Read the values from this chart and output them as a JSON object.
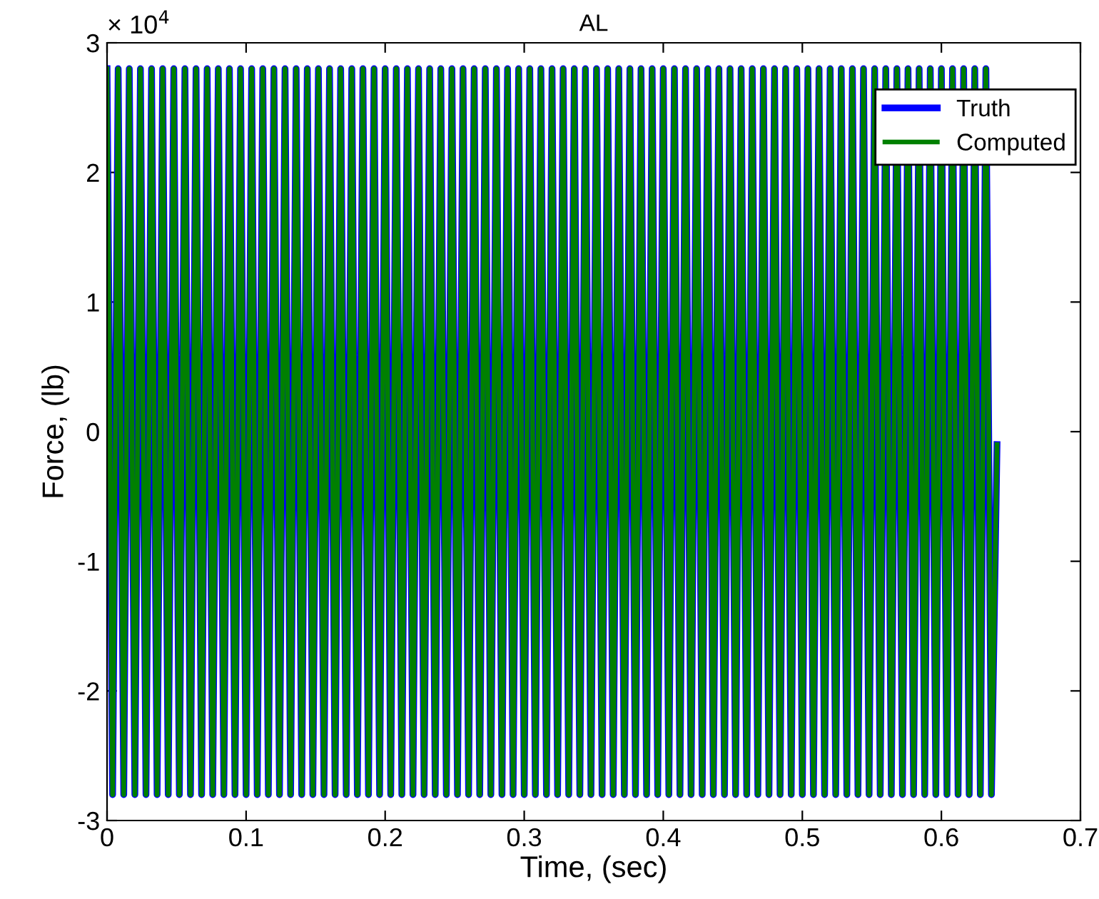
{
  "chart_data": {
    "type": "line",
    "title": "AL",
    "xlabel": "Time, (sec)",
    "ylabel": "Force, (lb)",
    "annotations": [
      "× 10$^{4}$"
    ],
    "x": [
      0,
      0.004,
      0.008,
      0.012,
      0.016,
      0.02,
      0.024,
      0.028,
      0.032,
      0.036,
      0.04,
      0.044,
      0.048,
      0.052,
      0.056,
      0.06,
      0.064,
      0.068,
      0.072,
      0.076,
      0.08,
      0.084,
      0.088,
      0.092,
      0.096,
      0.1,
      0.104,
      0.108,
      0.112,
      0.116,
      0.12,
      0.124,
      0.128,
      0.132,
      0.136,
      0.14,
      0.144,
      0.148,
      0.152,
      0.156,
      0.16,
      0.164,
      0.168,
      0.172,
      0.176,
      0.18,
      0.184,
      0.188,
      0.192,
      0.196,
      0.2,
      0.204,
      0.208,
      0.212,
      0.216,
      0.22,
      0.224,
      0.228,
      0.232,
      0.236,
      0.24,
      0.244,
      0.248,
      0.252,
      0.256,
      0.26,
      0.264,
      0.268,
      0.272,
      0.276,
      0.28,
      0.284,
      0.288,
      0.292,
      0.296,
      0.3,
      0.304,
      0.308,
      0.312,
      0.316,
      0.32,
      0.324,
      0.328,
      0.332,
      0.336,
      0.34,
      0.344,
      0.348,
      0.352,
      0.356,
      0.36,
      0.364,
      0.368,
      0.372,
      0.376,
      0.38,
      0.384,
      0.388,
      0.392,
      0.396,
      0.4,
      0.404,
      0.408,
      0.412,
      0.416,
      0.42,
      0.424,
      0.428,
      0.432,
      0.436,
      0.44,
      0.444,
      0.448,
      0.452,
      0.456,
      0.46,
      0.464,
      0.468,
      0.472,
      0.476,
      0.48,
      0.484,
      0.488,
      0.492,
      0.496,
      0.5,
      0.504,
      0.508,
      0.512,
      0.516,
      0.52,
      0.524,
      0.528,
      0.532,
      0.536,
      0.54,
      0.544,
      0.548,
      0.552,
      0.556,
      0.56,
      0.564,
      0.568,
      0.572,
      0.576,
      0.58,
      0.584,
      0.588,
      0.592,
      0.596,
      0.6,
      0.604,
      0.608,
      0.612,
      0.616,
      0.62,
      0.624,
      0.628,
      0.632,
      0.636,
      0.64
    ],
    "series": [
      {
        "name": "Truth",
        "color": "#0000ff",
        "values": [
          2.8,
          -2.8,
          2.8,
          -2.8,
          2.8,
          -2.8,
          2.8,
          -2.8,
          2.8,
          -2.8,
          2.8,
          -2.8,
          2.8,
          -2.8,
          2.8,
          -2.8,
          2.8,
          -2.8,
          2.8,
          -2.8,
          2.8,
          -2.8,
          2.8,
          -2.8,
          2.8,
          -2.8,
          2.8,
          -2.8,
          2.8,
          -2.8,
          2.8,
          -2.8,
          2.8,
          -2.8,
          2.8,
          -2.8,
          2.8,
          -2.8,
          2.8,
          -2.8,
          2.8,
          -2.8,
          2.8,
          -2.8,
          2.8,
          -2.8,
          2.8,
          -2.8,
          2.8,
          -2.8,
          2.8,
          -2.8,
          2.8,
          -2.8,
          2.8,
          -2.8,
          2.8,
          -2.8,
          2.8,
          -2.8,
          2.8,
          -2.8,
          2.8,
          -2.8,
          2.8,
          -2.8,
          2.8,
          -2.8,
          2.8,
          -2.8,
          2.8,
          -2.8,
          2.8,
          -2.8,
          2.8,
          -2.8,
          2.8,
          -2.8,
          2.8,
          -2.8,
          2.8,
          -2.8,
          2.8,
          -2.8,
          2.8,
          -2.8,
          2.8,
          -2.8,
          2.8,
          -2.8,
          2.8,
          -2.8,
          2.8,
          -2.8,
          2.8,
          -2.8,
          2.8,
          -2.8,
          2.8,
          -2.8,
          2.8,
          -2.8,
          2.8,
          -2.8,
          2.8,
          -2.8,
          2.8,
          -2.8,
          2.8,
          -2.8,
          2.8,
          -2.8,
          2.8,
          -2.8,
          2.8,
          -2.8,
          2.8,
          -2.8,
          2.8,
          -2.8,
          2.8,
          -2.8,
          2.8,
          -2.8,
          2.8,
          -2.8,
          2.8,
          -2.8,
          2.8,
          -2.8,
          2.8,
          -2.8,
          2.8,
          -2.8,
          2.8,
          -2.8,
          2.8,
          -2.8,
          2.8,
          -2.8,
          2.8,
          -2.8,
          2.8,
          -2.8,
          2.8,
          -2.8,
          2.8,
          -2.8,
          2.8,
          -2.8,
          2.8,
          -2.8,
          2.8,
          -2.8,
          2.8,
          -2.8,
          2.8,
          -2.8,
          2.8,
          -2.8,
          -0.1
        ]
      },
      {
        "name": "Computed",
        "color": "#008000",
        "values": [
          2.8,
          -2.8,
          2.8,
          -2.8,
          2.8,
          -2.8,
          2.8,
          -2.8,
          2.8,
          -2.8,
          2.8,
          -2.8,
          2.8,
          -2.8,
          2.8,
          -2.8,
          2.8,
          -2.8,
          2.8,
          -2.8,
          2.8,
          -2.8,
          2.8,
          -2.8,
          2.8,
          -2.8,
          2.8,
          -2.8,
          2.8,
          -2.8,
          2.8,
          -2.8,
          2.8,
          -2.8,
          2.8,
          -2.8,
          2.8,
          -2.8,
          2.8,
          -2.8,
          2.8,
          -2.8,
          2.8,
          -2.8,
          2.8,
          -2.8,
          2.8,
          -2.8,
          2.8,
          -2.8,
          2.8,
          -2.8,
          2.8,
          -2.8,
          2.8,
          -2.8,
          2.8,
          -2.8,
          2.8,
          -2.8,
          2.8,
          -2.8,
          2.8,
          -2.8,
          2.8,
          -2.8,
          2.8,
          -2.8,
          2.8,
          -2.8,
          2.8,
          -2.8,
          2.8,
          -2.8,
          2.8,
          -2.8,
          2.8,
          -2.8,
          2.8,
          -2.8,
          2.8,
          -2.8,
          2.8,
          -2.8,
          2.8,
          -2.8,
          2.8,
          -2.8,
          2.8,
          -2.8,
          2.8,
          -2.8,
          2.8,
          -2.8,
          2.8,
          -2.8,
          2.8,
          -2.8,
          2.8,
          -2.8,
          2.8,
          -2.8,
          2.8,
          -2.8,
          2.8,
          -2.8,
          2.8,
          -2.8,
          2.8,
          -2.8,
          2.8,
          -2.8,
          2.8,
          -2.8,
          2.8,
          -2.8,
          2.8,
          -2.8,
          2.8,
          -2.8,
          2.8,
          -2.8,
          2.8,
          -2.8,
          2.8,
          -2.8,
          2.8,
          -2.8,
          2.8,
          -2.8,
          2.8,
          -2.8,
          2.8,
          -2.8,
          2.8,
          -2.8,
          2.8,
          -2.8,
          2.8,
          -2.8,
          2.8,
          -2.8,
          2.8,
          -2.8,
          2.8,
          -2.8,
          2.8,
          -2.8,
          2.8,
          -2.8,
          2.8,
          -2.8,
          2.8,
          -2.8,
          2.8,
          -2.8,
          2.8,
          -2.8,
          2.8,
          -2.8,
          -0.1
        ]
      }
    ],
    "xlim": [
      0,
      0.7
    ],
    "xticks": [
      0,
      0.1,
      0.2,
      0.3,
      0.4,
      0.5,
      0.6,
      0.7
    ],
    "ylim": [
      -3,
      3
    ],
    "yticks": [
      -3,
      -2,
      -1,
      0,
      1,
      2,
      3
    ],
    "grid": false,
    "legend": "top right",
    "line_style": "solid",
    "marker": "none"
  }
}
